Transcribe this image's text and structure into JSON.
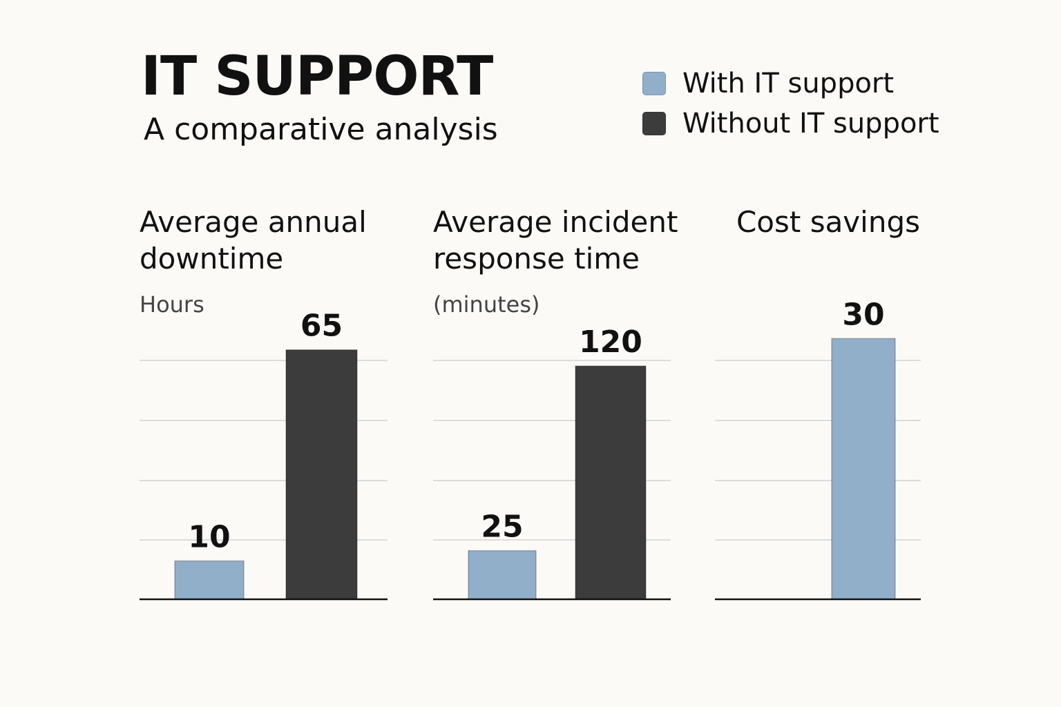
{
  "header": {
    "title": "IT SUPPORT",
    "subtitle": "A comparative analysis"
  },
  "colors": {
    "with": "#92afca",
    "without": "#3c3c3c",
    "grid": "#dcdcdc",
    "axis": "#111111",
    "background": "#fbfaf7"
  },
  "legend": [
    {
      "label": "With IT support",
      "color_key": "with"
    },
    {
      "label": "Without IT support",
      "color_key": "without"
    }
  ],
  "chart_data": [
    {
      "type": "bar",
      "title": "Average annual downtime",
      "title_lines": [
        "Average annual",
        "downtime"
      ],
      "unit_label": "Hours",
      "title_align": "left",
      "categories": [
        "With IT support",
        "Without IT support"
      ],
      "series": [
        {
          "name": "With IT support",
          "values": [
            10,
            null
          ]
        },
        {
          "name": "Without IT support",
          "values": [
            null,
            65
          ]
        }
      ],
      "data_labels": [
        "10",
        "65"
      ],
      "ylim": [
        0,
        77
      ],
      "grid": true
    },
    {
      "type": "bar",
      "title": "Average incident response time",
      "title_lines": [
        "Average incident",
        "response time"
      ],
      "unit_label": "(minutes)",
      "title_align": "left",
      "categories": [
        "With IT support",
        "Without IT support"
      ],
      "series": [
        {
          "name": "With IT support",
          "values": [
            25,
            null
          ]
        },
        {
          "name": "Without IT support",
          "values": [
            null,
            120
          ]
        }
      ],
      "data_labels": [
        "25",
        "120"
      ],
      "ylim": [
        0,
        152
      ],
      "grid": true
    },
    {
      "type": "bar",
      "title": "Cost savings",
      "title_lines": [
        "Cost savings"
      ],
      "unit_label": "",
      "title_align": "right",
      "categories": [
        "With IT support"
      ],
      "series": [
        {
          "name": "With IT support",
          "values": [
            30
          ]
        }
      ],
      "data_labels": [
        "30"
      ],
      "ylim": [
        0,
        34
      ],
      "grid": true
    }
  ]
}
